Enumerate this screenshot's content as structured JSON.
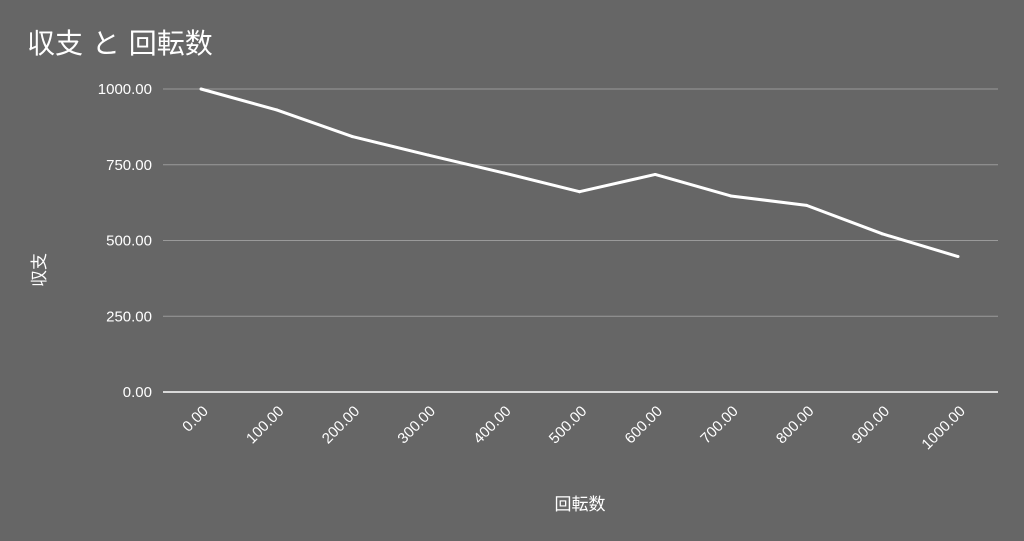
{
  "chart_data": {
    "type": "line",
    "title": "収支 と 回転数",
    "xlabel": "回転数",
    "ylabel": "収支",
    "x": [
      0,
      100,
      200,
      300,
      400,
      500,
      600,
      700,
      800,
      900,
      1000
    ],
    "x_tick_labels": [
      "0.00",
      "100.00",
      "200.00",
      "300.00",
      "400.00",
      "500.00",
      "600.00",
      "700.00",
      "800.00",
      "900.00",
      "1000.00"
    ],
    "y_tick_labels": [
      "0.00",
      "250.00",
      "500.00",
      "750.00",
      "1000.00"
    ],
    "y_ticks": [
      0,
      250,
      500,
      750,
      1000
    ],
    "ylim": [
      0,
      1000
    ],
    "xlim": [
      0,
      1000
    ],
    "grid": true,
    "legend": "none",
    "series": [
      {
        "values": [
          1000,
          931,
          843,
          782,
          723,
          661,
          718,
          647,
          616,
          522,
          447
        ],
        "color": "#ffffff"
      }
    ],
    "background": "#666666",
    "gridline_color": "#9a9a9a"
  }
}
